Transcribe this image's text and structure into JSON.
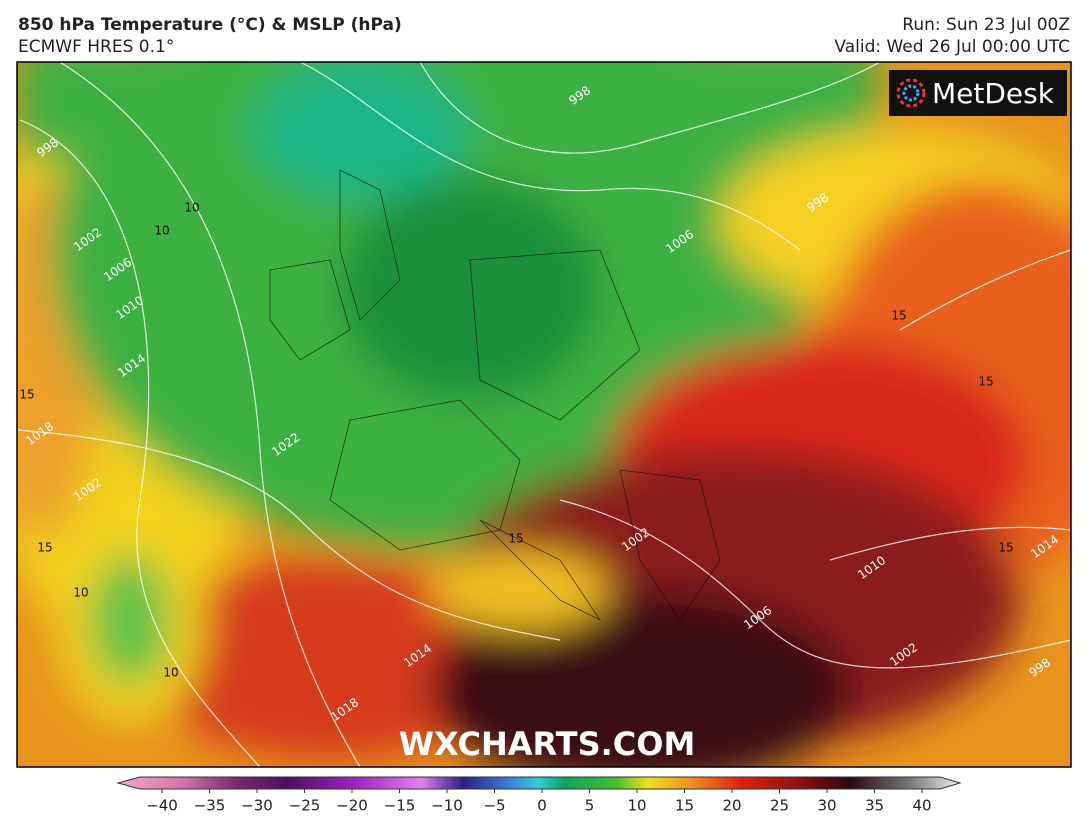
{
  "header": {
    "title": "850 hPa Temperature (°C) & MSLP (hPa)",
    "subtitle": "ECMWF HRES 0.1°",
    "run": "Run: Sun 23 Jul 00Z",
    "valid": "Valid: Wed 26 Jul 00:00 UTC"
  },
  "logo": "MetDesk",
  "watermark": "WXCHARTS.COM",
  "map_labels": {
    "isotherms": [
      "10",
      "10",
      "15",
      "15",
      "15",
      "15",
      "15",
      "15",
      "10",
      "10"
    ],
    "isobars": [
      "998",
      "998",
      "1002",
      "1006",
      "1010",
      "1014",
      "1018",
      "1022",
      "1002",
      "998",
      "1006",
      "1002",
      "1010",
      "1006",
      "1014",
      "1018",
      "1002",
      "998",
      "1014"
    ]
  },
  "colorbar": {
    "ticks": [
      {
        "value": -40,
        "label": "−40"
      },
      {
        "value": -35,
        "label": "−35"
      },
      {
        "value": -30,
        "label": "−30"
      },
      {
        "value": -25,
        "label": "−25"
      },
      {
        "value": -20,
        "label": "−20"
      },
      {
        "value": -15,
        "label": "−15"
      },
      {
        "value": -10,
        "label": "−10"
      },
      {
        "value": -5,
        "label": "−5"
      },
      0,
      5,
      10,
      15,
      20,
      25,
      30,
      35,
      40
    ]
  }
}
